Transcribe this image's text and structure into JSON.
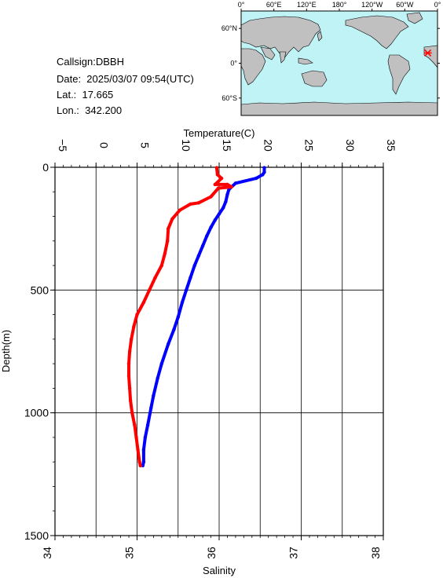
{
  "info": {
    "callsign": "Callsign:DBBH",
    "date": "Date:  2025/03/07 09:54(UTC)",
    "lat": "Lat.:  17.665",
    "lon": "Lon.:  342.200"
  },
  "map": {
    "lon_labels": [
      "0°",
      "60°E",
      "120°E",
      "180°",
      "120°W",
      "60°W",
      "0°"
    ],
    "lat_labels": [
      "60°N",
      "0°",
      "60°S"
    ],
    "station": {
      "lat": 17.665,
      "lon": 342.2
    },
    "colors": {
      "ocean": "#bff3f6",
      "land": "#c0c0c0",
      "marker": "#ff0000"
    }
  },
  "chart_data": {
    "type": "line",
    "ylabel": "Depth(m)",
    "y_range": [
      0,
      1500
    ],
    "y_inverted": true,
    "y_ticks": [
      0,
      500,
      1000,
      1500
    ],
    "x_top": {
      "label": "Temperature(C)",
      "range": [
        -5,
        35
      ],
      "ticks": [
        -5,
        0,
        5,
        10,
        15,
        20,
        25,
        30,
        35
      ]
    },
    "x_bottom": {
      "label": "Salinity",
      "range": [
        34,
        38
      ],
      "ticks": [
        34,
        35,
        36,
        37,
        38
      ]
    },
    "grid": true,
    "series": [
      {
        "axis": "top",
        "color": "#0000ff",
        "points": [
          [
            20.5,
            2
          ],
          [
            20.5,
            20
          ],
          [
            20.3,
            30
          ],
          [
            19.5,
            45
          ],
          [
            17.0,
            65
          ],
          [
            16.2,
            90
          ],
          [
            16.0,
            110
          ],
          [
            15.8,
            140
          ],
          [
            15.5,
            165
          ],
          [
            15.0,
            190
          ],
          [
            14.5,
            215
          ],
          [
            14.0,
            245
          ],
          [
            13.5,
            280
          ],
          [
            13.0,
            320
          ],
          [
            12.5,
            360
          ],
          [
            12.0,
            400
          ],
          [
            11.5,
            450
          ],
          [
            11.0,
            500
          ],
          [
            10.5,
            550
          ],
          [
            10.0,
            610
          ],
          [
            9.5,
            660
          ],
          [
            8.8,
            720
          ],
          [
            8.0,
            800
          ],
          [
            7.5,
            860
          ],
          [
            7.0,
            930
          ],
          [
            6.7,
            980
          ],
          [
            6.3,
            1050
          ],
          [
            6.0,
            1100
          ],
          [
            5.8,
            1150
          ],
          [
            5.8,
            1200
          ],
          [
            5.7,
            1215
          ]
        ]
      },
      {
        "axis": "bottom",
        "color": "#ff0000",
        "points": [
          [
            35.97,
            2
          ],
          [
            35.98,
            30
          ],
          [
            36.03,
            45
          ],
          [
            35.95,
            70
          ],
          [
            36.1,
            70
          ],
          [
            36.15,
            80
          ],
          [
            35.99,
            85
          ],
          [
            35.9,
            120
          ],
          [
            35.75,
            145
          ],
          [
            35.65,
            150
          ],
          [
            35.52,
            175
          ],
          [
            35.43,
            210
          ],
          [
            35.38,
            250
          ],
          [
            35.37,
            300
          ],
          [
            35.34,
            350
          ],
          [
            35.3,
            400
          ],
          [
            35.22,
            450
          ],
          [
            35.15,
            500
          ],
          [
            35.08,
            550
          ],
          [
            35.0,
            600
          ],
          [
            34.96,
            650
          ],
          [
            34.93,
            700
          ],
          [
            34.91,
            750
          ],
          [
            34.9,
            800
          ],
          [
            34.9,
            850
          ],
          [
            34.91,
            900
          ],
          [
            34.92,
            950
          ],
          [
            34.94,
            1000
          ],
          [
            34.97,
            1050
          ],
          [
            34.99,
            1100
          ],
          [
            35.01,
            1150
          ],
          [
            35.03,
            1200
          ],
          [
            35.04,
            1215
          ]
        ]
      }
    ]
  }
}
